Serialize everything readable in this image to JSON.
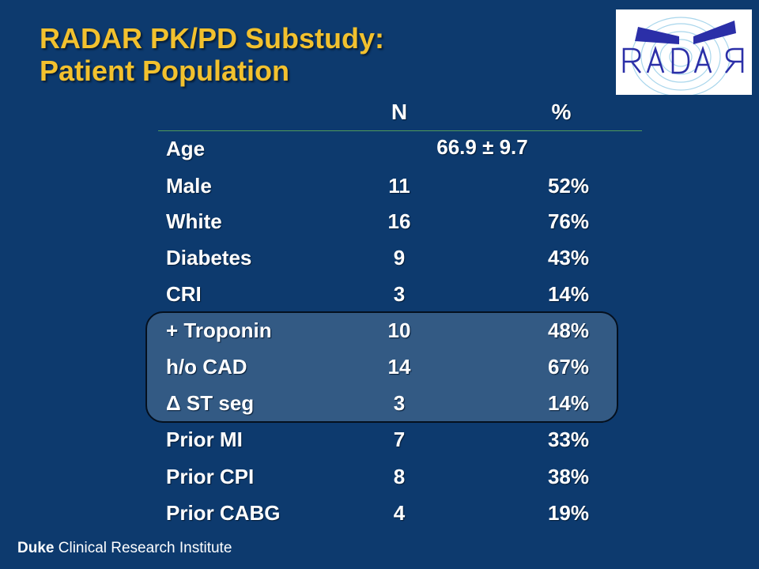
{
  "slide": {
    "title_line1": "RADAR PK/PD Substudy:",
    "title_line2": "Patient Population",
    "logo_text": "RADAR",
    "footer_brand": "Duke",
    "footer_rest": "Clinical Research Institute"
  },
  "table": {
    "header_n": "N",
    "header_pct": "%",
    "rows": [
      {
        "label": "Age",
        "combined": "66.9 ± 9.7"
      },
      {
        "label": "Male",
        "n": "11",
        "pct": "52%"
      },
      {
        "label": "White",
        "n": "16",
        "pct": "76%"
      },
      {
        "label": "Diabetes",
        "n": "9",
        "pct": "43%"
      },
      {
        "label": "CRI",
        "n": "3",
        "pct": "14%"
      },
      {
        "label": "+ Troponin",
        "n": "10",
        "pct": "48%"
      },
      {
        "label": "h/o CAD",
        "n": "14",
        "pct": "67%"
      },
      {
        "label": "Δ ST seg",
        "n": "3",
        "pct": "14%"
      },
      {
        "label": "Prior MI",
        "n": "7",
        "pct": "33%"
      },
      {
        "label": "Prior CPI",
        "n": "8",
        "pct": "38%"
      },
      {
        "label": "Prior CABG",
        "n": "4",
        "pct": "19%"
      }
    ]
  }
}
